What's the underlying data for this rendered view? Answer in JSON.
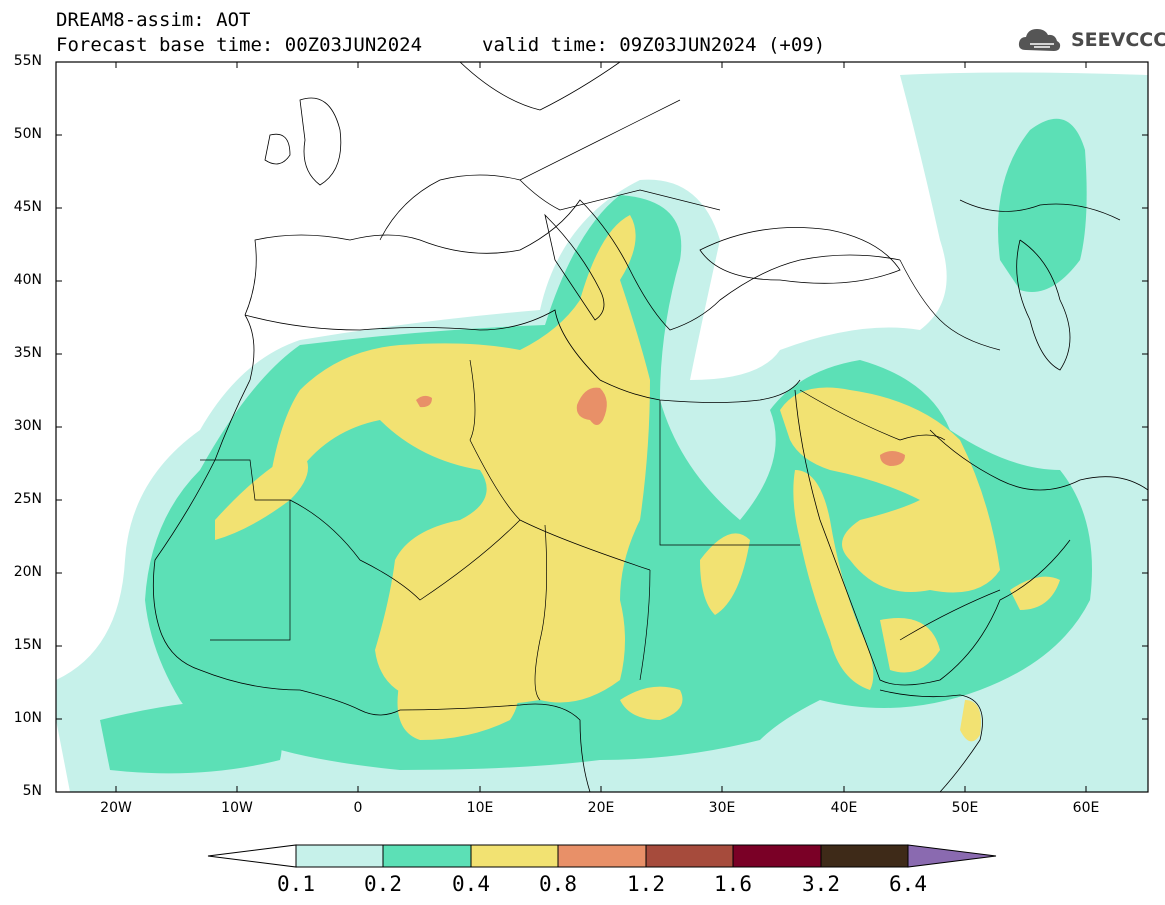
{
  "header": {
    "line1": "DREAM8-assim: AOT",
    "base_time": "Forecast base time: 00Z03JUN2024",
    "valid_time": "valid time: 09Z03JUN2024 (+09)"
  },
  "logo": {
    "text": "SEEVCCC",
    "icon": "cloud-icon"
  },
  "axes": {
    "lat_labels": [
      "55N",
      "50N",
      "45N",
      "40N",
      "35N",
      "30N",
      "25N",
      "20N",
      "15N",
      "10N",
      "5N"
    ],
    "lon_labels": [
      "20W",
      "10W",
      "0",
      "10E",
      "20E",
      "30E",
      "40E",
      "50E",
      "60E"
    ]
  },
  "legend": {
    "levels": [
      "0.1",
      "0.2",
      "0.4",
      "0.8",
      "1.2",
      "1.6",
      "3.2",
      "6.4"
    ],
    "colors": {
      "under": "#ffffff",
      "c1": "#c6f1ea",
      "c2": "#5ce0b6",
      "c3": "#f2e272",
      "c4": "#e89068",
      "c5": "#a64b3c",
      "c6": "#7a0026",
      "c7": "#3e2a18",
      "over": "#8a6ab0"
    }
  }
}
